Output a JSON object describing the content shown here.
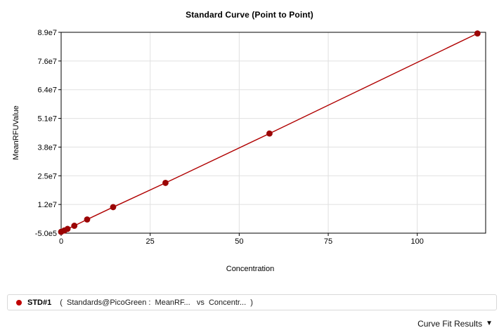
{
  "chart_data": {
    "type": "line",
    "title": "Standard Curve (Point to Point)",
    "xlabel": "Concentration",
    "ylabel": "MeanRFUValue",
    "xlim": [
      0,
      119.2
    ],
    "ylim": [
      -500000,
      89000000
    ],
    "x_ticks": {
      "values": [
        0,
        25,
        50,
        75,
        100
      ],
      "labels": [
        "0",
        "25",
        "50",
        "75",
        "100"
      ]
    },
    "y_ticks": {
      "labels_top_to_bottom": [
        "8.9e7",
        "7.6e7",
        "6.4e7",
        "5.1e7",
        "3.8e7",
        "2.5e7",
        "1.2e7",
        "-5.0e5"
      ]
    },
    "grid": true,
    "grid_color": "#e0e0e0",
    "axis_color": "#000000",
    "legend_position": "bottom",
    "series": [
      {
        "name": "STD#1",
        "marker": "circle",
        "marker_color": "#9b0505",
        "line_color": "#b00000",
        "x": [
          0,
          0.9,
          1.8,
          3.7,
          7.3,
          14.6,
          29.3,
          58.5,
          116.9
        ],
        "y": [
          100000,
          700000,
          1400000,
          2800000,
          5600000,
          11100000,
          21900000,
          43900000,
          88500000
        ]
      }
    ]
  },
  "legend": {
    "series_name": "STD#1",
    "series_desc": "(  Standards@PicoGreen :  MeanRF...   vs  Concentr...  )",
    "marker_color": "#c00000"
  },
  "footer": {
    "curve_fit_results_label": "Curve Fit Results",
    "expand_icon": "▼"
  }
}
